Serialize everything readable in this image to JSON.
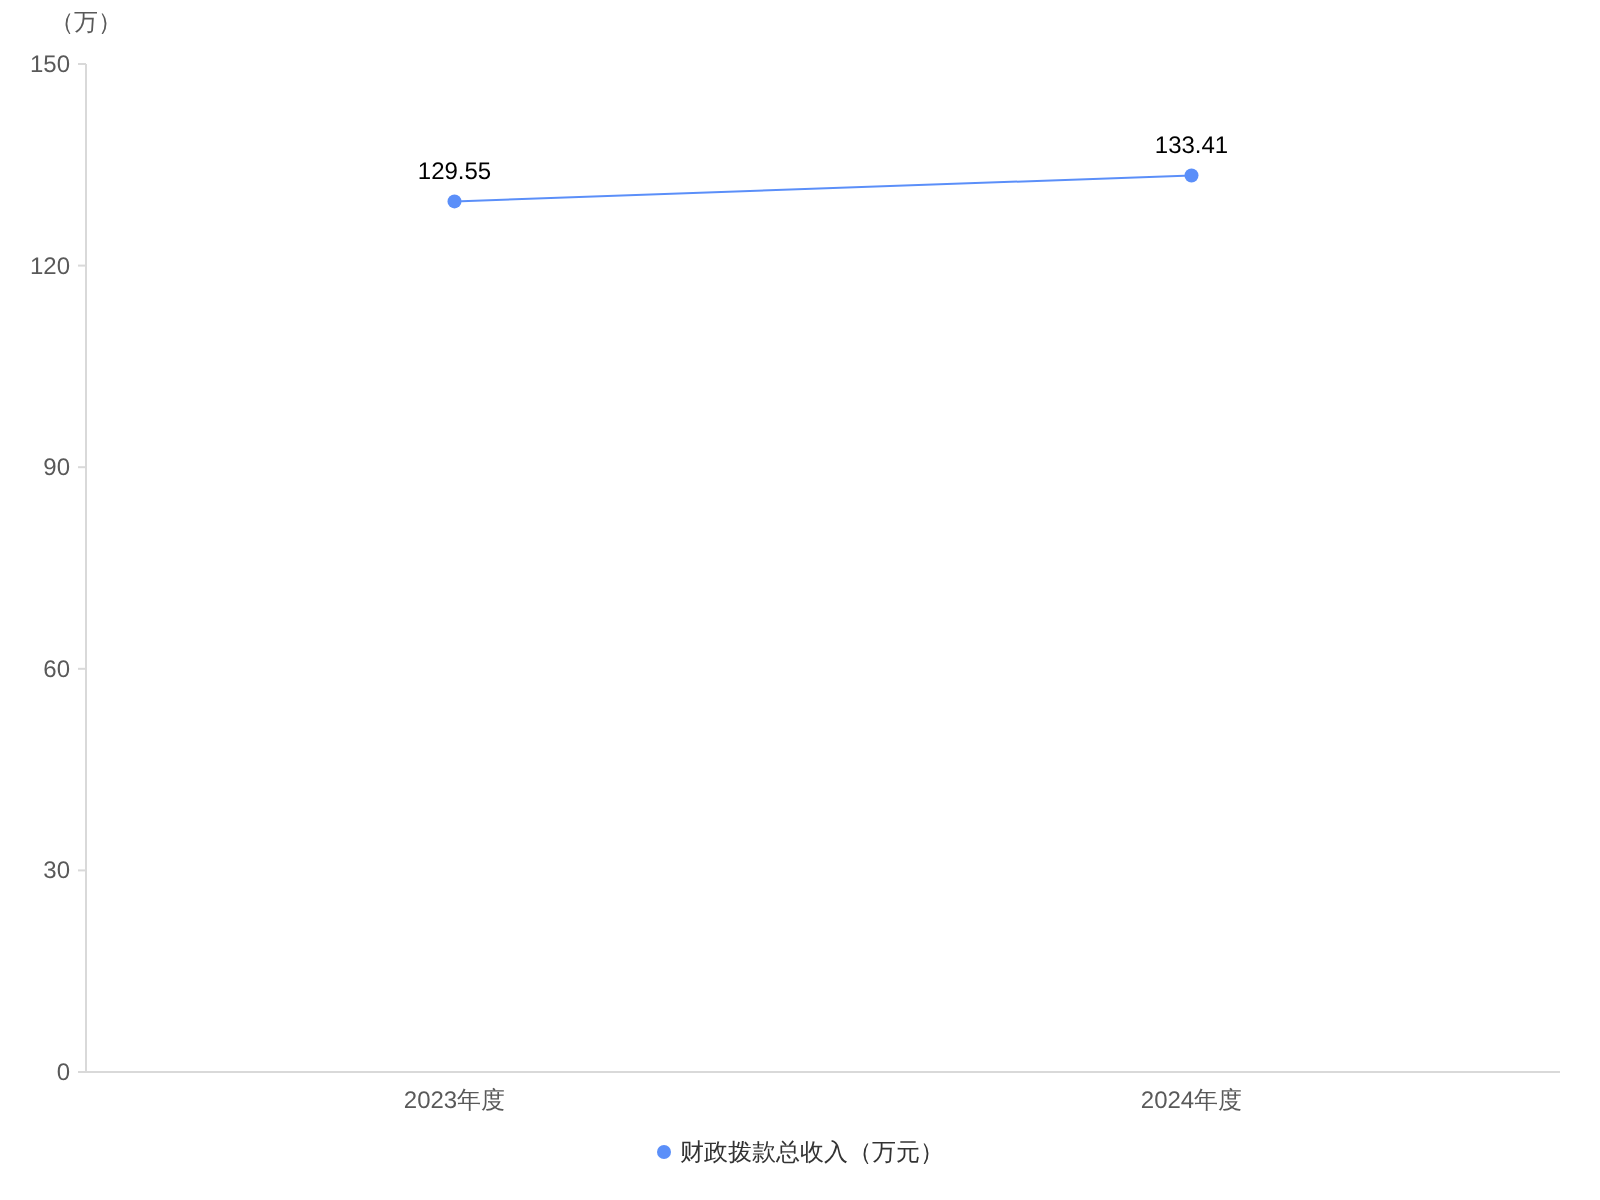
{
  "chart_data": {
    "type": "line",
    "ylabel": "（万）",
    "categories": [
      "2023年度",
      "2024年度"
    ],
    "series": [
      {
        "name": "财政拨款总收入（万元）",
        "color": "#5b8ff9",
        "values": [
          129.55,
          133.41
        ]
      }
    ],
    "ylim": [
      0,
      150
    ],
    "yticks": [
      0,
      30,
      60,
      90,
      120,
      150
    ],
    "data_labels": true,
    "legend": "bottom",
    "marker": "circle"
  }
}
